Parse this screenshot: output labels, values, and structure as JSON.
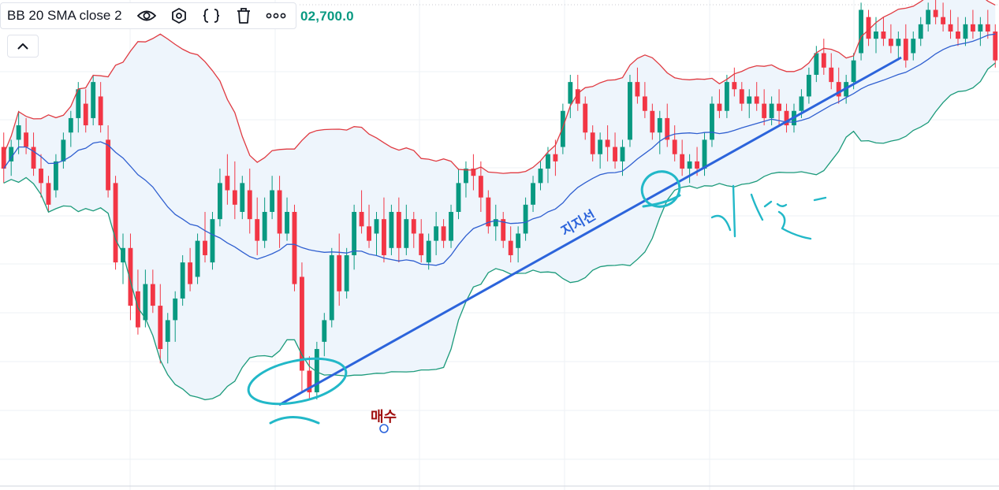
{
  "indicator_legend": {
    "name": "BB 20 SMA close 2",
    "value": "02,700.0",
    "icons": [
      "eye-icon",
      "settings-hexagon-icon",
      "source-code-icon",
      "trash-icon",
      "more-icon"
    ]
  },
  "collapse_icon": "chevron-up-icon",
  "annotations": {
    "support_label": "지지선",
    "buy_label": "매수",
    "handwritten_note": "이탈"
  },
  "colors": {
    "up": "#089981",
    "down": "#f23645",
    "upper_band": "#e03b42",
    "lower_band": "#1b9a7a",
    "basis": "#2f5fd0",
    "band_fill": "#eef5fc",
    "support_line": "#2c64db",
    "marker": "#22b8c8",
    "buy_text": "#a01010",
    "grid": "#eef0f4"
  },
  "chart_data": {
    "type": "candlestick",
    "title": "",
    "indicator": "Bollinger Bands (20, SMA, close, 2)",
    "grid": true,
    "legend": "top-left",
    "ylim": [
      0,
      100
    ],
    "ohlc": [
      [
        68,
        72,
        58,
        62
      ],
      [
        64,
        70,
        60,
        68
      ],
      [
        70,
        78,
        66,
        74
      ],
      [
        72,
        76,
        66,
        68
      ],
      [
        68,
        72,
        60,
        62
      ],
      [
        62,
        66,
        54,
        58
      ],
      [
        58,
        60,
        50,
        52
      ],
      [
        56,
        66,
        54,
        64
      ],
      [
        64,
        72,
        62,
        70
      ],
      [
        72,
        78,
        68,
        76
      ],
      [
        76,
        86,
        72,
        84
      ],
      [
        80,
        84,
        72,
        74
      ],
      [
        76,
        88,
        74,
        86
      ],
      [
        82,
        86,
        72,
        74
      ],
      [
        70,
        74,
        54,
        56
      ],
      [
        58,
        60,
        34,
        36
      ],
      [
        36,
        44,
        30,
        40
      ],
      [
        40,
        44,
        20,
        24
      ],
      [
        28,
        34,
        16,
        18
      ],
      [
        20,
        34,
        18,
        30
      ],
      [
        30,
        34,
        22,
        24
      ],
      [
        24,
        30,
        8,
        12
      ],
      [
        14,
        22,
        8,
        20
      ],
      [
        20,
        28,
        14,
        26
      ],
      [
        26,
        38,
        24,
        36
      ],
      [
        36,
        40,
        28,
        30
      ],
      [
        32,
        44,
        30,
        42
      ],
      [
        42,
        50,
        36,
        38
      ],
      [
        36,
        50,
        34,
        48
      ],
      [
        48,
        62,
        46,
        58
      ],
      [
        60,
        66,
        52,
        56
      ],
      [
        56,
        64,
        48,
        52
      ],
      [
        50,
        60,
        48,
        58
      ],
      [
        56,
        62,
        44,
        48
      ],
      [
        48,
        54,
        38,
        42
      ],
      [
        42,
        54,
        40,
        50
      ],
      [
        50,
        60,
        48,
        56
      ],
      [
        56,
        60,
        40,
        44
      ],
      [
        44,
        54,
        42,
        50
      ],
      [
        50,
        52,
        28,
        30
      ],
      [
        32,
        36,
        0,
        6
      ],
      [
        6,
        10,
        -2,
        0
      ],
      [
        0,
        14,
        -2,
        12
      ],
      [
        14,
        22,
        10,
        20
      ],
      [
        20,
        40,
        18,
        38
      ],
      [
        38,
        44,
        24,
        28
      ],
      [
        28,
        40,
        26,
        38
      ],
      [
        38,
        52,
        34,
        50
      ],
      [
        50,
        56,
        44,
        46
      ],
      [
        46,
        52,
        40,
        42
      ],
      [
        44,
        50,
        38,
        48
      ],
      [
        48,
        54,
        36,
        38
      ],
      [
        40,
        52,
        38,
        50
      ],
      [
        50,
        54,
        36,
        40
      ],
      [
        40,
        52,
        38,
        48
      ],
      [
        48,
        50,
        40,
        44
      ],
      [
        44,
        48,
        36,
        38
      ],
      [
        36,
        44,
        34,
        42
      ],
      [
        42,
        50,
        38,
        46
      ],
      [
        46,
        48,
        40,
        42
      ],
      [
        42,
        52,
        40,
        50
      ],
      [
        50,
        62,
        48,
        58
      ],
      [
        58,
        64,
        54,
        62
      ],
      [
        62,
        66,
        56,
        60
      ],
      [
        60,
        64,
        50,
        54
      ],
      [
        54,
        56,
        44,
        46
      ],
      [
        46,
        52,
        42,
        48
      ],
      [
        48,
        50,
        40,
        42
      ],
      [
        42,
        46,
        36,
        38
      ],
      [
        40,
        46,
        36,
        44
      ],
      [
        44,
        54,
        42,
        52
      ],
      [
        52,
        60,
        50,
        58
      ],
      [
        58,
        64,
        56,
        62
      ],
      [
        62,
        68,
        58,
        66
      ],
      [
        66,
        70,
        60,
        64
      ],
      [
        68,
        80,
        66,
        78
      ],
      [
        80,
        88,
        76,
        86
      ],
      [
        84,
        88,
        78,
        80
      ],
      [
        80,
        82,
        70,
        72
      ],
      [
        72,
        74,
        64,
        66
      ],
      [
        66,
        72,
        62,
        70
      ],
      [
        70,
        74,
        64,
        68
      ],
      [
        68,
        72,
        62,
        64
      ],
      [
        64,
        70,
        60,
        68
      ],
      [
        70,
        88,
        68,
        86
      ],
      [
        86,
        90,
        80,
        82
      ],
      [
        82,
        86,
        76,
        78
      ],
      [
        78,
        80,
        70,
        72
      ],
      [
        72,
        78,
        66,
        76
      ],
      [
        76,
        80,
        68,
        70
      ],
      [
        70,
        74,
        64,
        66
      ],
      [
        66,
        70,
        60,
        62
      ],
      [
        62,
        66,
        58,
        64
      ],
      [
        64,
        68,
        60,
        62
      ],
      [
        62,
        72,
        60,
        70
      ],
      [
        70,
        82,
        68,
        80
      ],
      [
        80,
        84,
        76,
        78
      ],
      [
        78,
        88,
        76,
        86
      ],
      [
        86,
        90,
        82,
        84
      ],
      [
        84,
        86,
        78,
        80
      ],
      [
        80,
        84,
        76,
        82
      ],
      [
        82,
        86,
        78,
        80
      ],
      [
        80,
        84,
        74,
        76
      ],
      [
        76,
        82,
        74,
        80
      ],
      [
        80,
        84,
        74,
        78
      ],
      [
        78,
        80,
        72,
        74
      ],
      [
        74,
        80,
        72,
        78
      ],
      [
        78,
        84,
        76,
        82
      ],
      [
        82,
        90,
        80,
        88
      ],
      [
        88,
        96,
        86,
        94
      ],
      [
        94,
        98,
        88,
        90
      ],
      [
        90,
        94,
        84,
        86
      ],
      [
        86,
        90,
        80,
        82
      ],
      [
        82,
        88,
        80,
        86
      ],
      [
        86,
        94,
        84,
        92
      ],
      [
        94,
        108,
        92,
        106
      ],
      [
        104,
        106,
        96,
        98
      ],
      [
        98,
        104,
        94,
        100
      ],
      [
        100,
        104,
        96,
        98
      ],
      [
        98,
        102,
        94,
        96
      ],
      [
        96,
        100,
        92,
        98
      ],
      [
        98,
        102,
        90,
        92
      ],
      [
        94,
        100,
        92,
        98
      ],
      [
        98,
        104,
        96,
        102
      ],
      [
        102,
        108,
        100,
        106
      ],
      [
        106,
        110,
        102,
        104
      ],
      [
        104,
        108,
        100,
        102
      ],
      [
        102,
        106,
        98,
        100
      ],
      [
        100,
        104,
        96,
        98
      ],
      [
        98,
        104,
        96,
        102
      ],
      [
        102,
        106,
        98,
        100
      ],
      [
        100,
        104,
        96,
        102
      ],
      [
        102,
        106,
        98,
        100
      ],
      [
        100,
        102,
        90,
        92
      ]
    ]
  }
}
